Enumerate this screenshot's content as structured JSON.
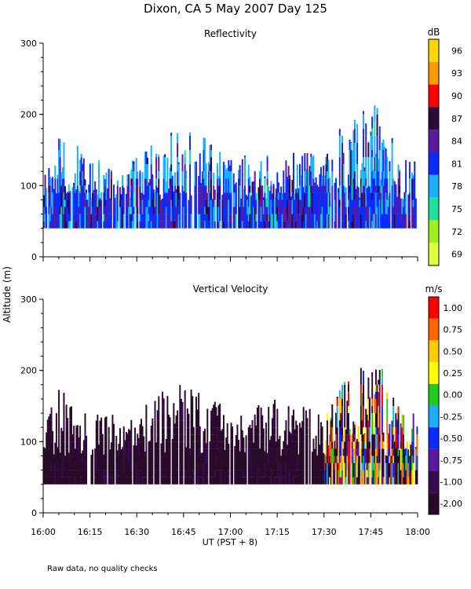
{
  "title": "Dixon, CA  5 May 2007  Day 125",
  "y_axis_label": "Altitude (m)",
  "x_axis_label": "UT  (PST + 8)",
  "footnote": "Raw data, no quality checks",
  "x_ticks": [
    "16:00",
    "16:15",
    "16:30",
    "16:45",
    "17:00",
    "17:15",
    "17:30",
    "17:45",
    "18:00"
  ],
  "y_ticks": [
    "0",
    "100",
    "200",
    "300"
  ],
  "chart_data": [
    {
      "type": "heatmap",
      "title": "Reflectivity",
      "xlim": [
        "16:00",
        "18:00"
      ],
      "ylim": [
        0,
        300
      ],
      "colorbar_unit": "dB",
      "colorbar_labels": [
        "96",
        "93",
        "90",
        "87",
        "84",
        "81",
        "78",
        "75",
        "72",
        "69"
      ],
      "colorbar_colors": [
        "#ffd700",
        "#ff9900",
        "#ff0000",
        "#2a0a3a",
        "#5a1aa0",
        "#0a2aff",
        "#1ab0ff",
        "#20e0a0",
        "#a0f020",
        "#e0ff40"
      ],
      "data_altitude_range": [
        40,
        220
      ],
      "column_height_envelope": [
        {
          "time": "16:00",
          "top": 120
        },
        {
          "time": "16:05",
          "top": 180
        },
        {
          "time": "16:15",
          "top": 140
        },
        {
          "time": "16:30",
          "top": 140
        },
        {
          "time": "16:40",
          "top": 180
        },
        {
          "time": "16:50",
          "top": 180
        },
        {
          "time": "17:00",
          "top": 140
        },
        {
          "time": "17:15",
          "top": 160
        },
        {
          "time": "17:30",
          "top": 140
        },
        {
          "time": "17:35",
          "top": 180
        },
        {
          "time": "17:40",
          "top": 200
        },
        {
          "time": "17:48",
          "top": 220
        },
        {
          "time": "17:55",
          "top": 140
        },
        {
          "time": "18:00",
          "top": 140
        }
      ]
    },
    {
      "type": "heatmap",
      "title": "Vertical Velocity",
      "xlim": [
        "16:00",
        "18:00"
      ],
      "ylim": [
        0,
        300
      ],
      "colorbar_unit": "m/s",
      "colorbar_labels": [
        "1.00",
        "0.75",
        "0.50",
        "0.25",
        "0.00",
        "-0.25",
        "-0.50",
        "-0.75",
        "-1.00",
        "-2.00"
      ],
      "colorbar_colors": [
        "#ff0000",
        "#ff6600",
        "#ffcc00",
        "#ffff00",
        "#22cc22",
        "#1ab0ff",
        "#0a2aff",
        "#5a1aa0",
        "#3a0a50",
        "#2a0a2a"
      ],
      "data_altitude_range": [
        40,
        220
      ],
      "column_height_envelope": [
        {
          "time": "16:00",
          "top": 120
        },
        {
          "time": "16:05",
          "top": 180
        },
        {
          "time": "16:15",
          "top": 140
        },
        {
          "time": "16:30",
          "top": 140
        },
        {
          "time": "16:40",
          "top": 180
        },
        {
          "time": "16:50",
          "top": 180
        },
        {
          "time": "17:00",
          "top": 140
        },
        {
          "time": "17:15",
          "top": 160
        },
        {
          "time": "17:30",
          "top": 140
        },
        {
          "time": "17:35",
          "top": 180
        },
        {
          "time": "17:40",
          "top": 200
        },
        {
          "time": "17:48",
          "top": 220
        },
        {
          "time": "17:55",
          "top": 140
        },
        {
          "time": "18:00",
          "top": 140
        }
      ]
    }
  ]
}
